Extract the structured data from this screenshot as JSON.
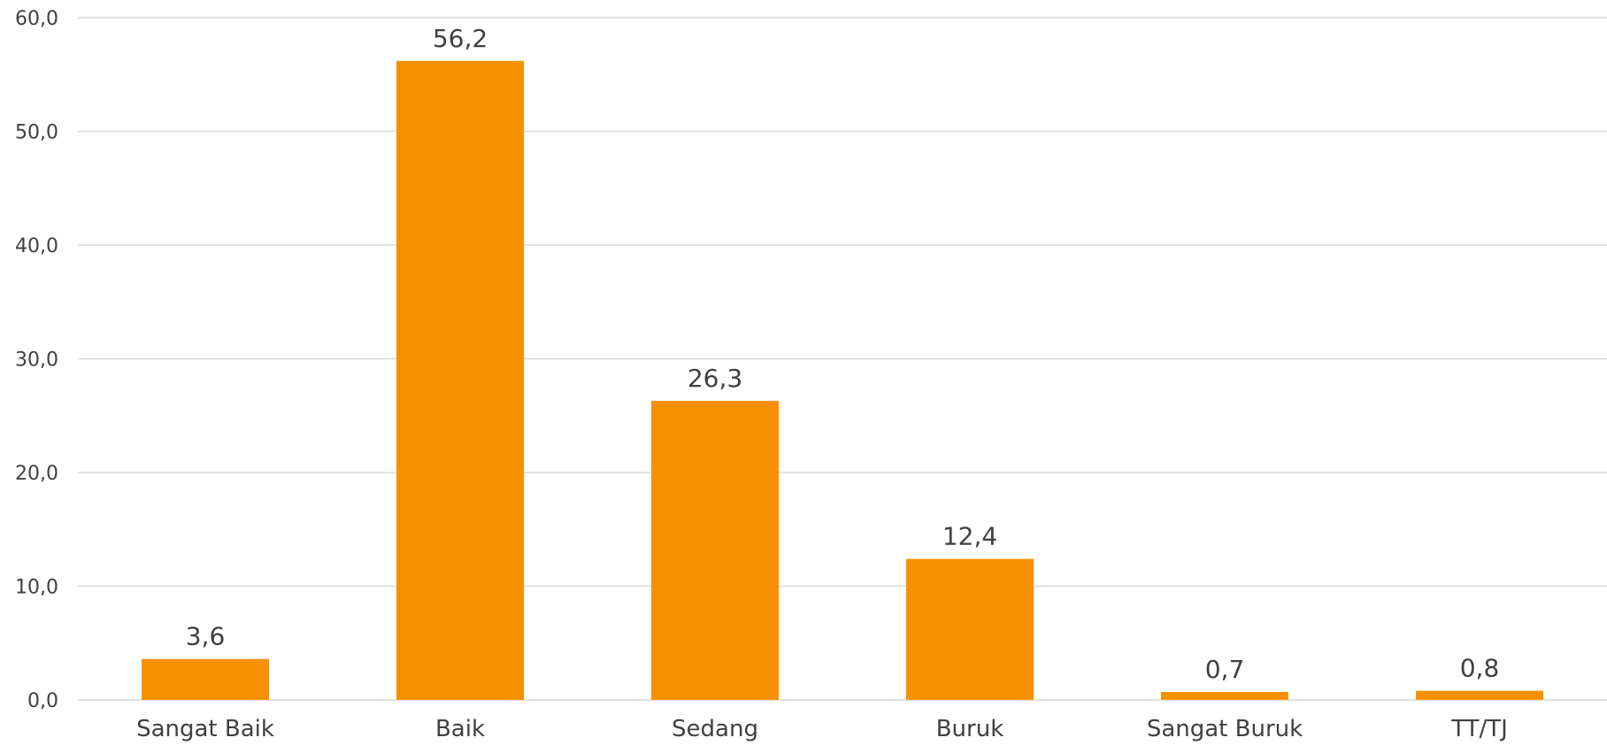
{
  "chart_data": {
    "type": "bar",
    "title": "",
    "xlabel": "",
    "ylabel": "",
    "categories": [
      "Sangat Baik",
      "Baik",
      "Sedang",
      "Buruk",
      "Sangat Buruk",
      "TT/TJ"
    ],
    "values": [
      3.6,
      56.2,
      26.3,
      12.4,
      0.7,
      0.8
    ],
    "value_labels": [
      "3,6",
      "56,2",
      "26,3",
      "12,4",
      "0,7",
      "0,8"
    ],
    "ylim": [
      0,
      60
    ],
    "yticks": [
      0,
      10,
      20,
      30,
      40,
      50,
      60
    ],
    "ytick_labels": [
      "0,0",
      "10,0",
      "20,0",
      "30,0",
      "40,0",
      "50,0",
      "60,0"
    ],
    "grid": true,
    "legend": "none",
    "bar_color": "#F79100"
  }
}
